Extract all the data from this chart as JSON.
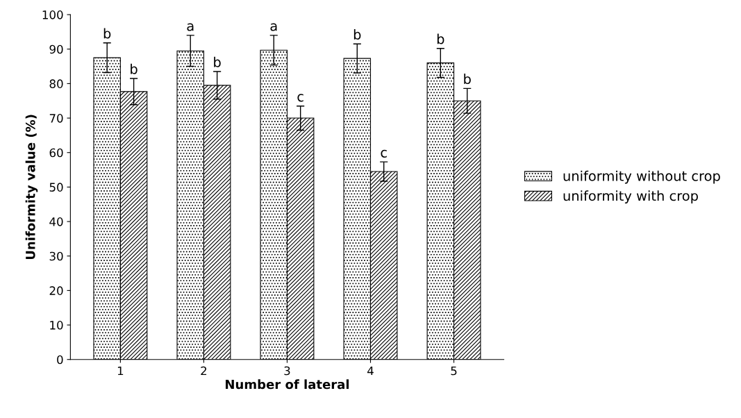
{
  "chart_data": {
    "type": "bar",
    "xlabel": "Number of lateral",
    "ylabel": "Uniformity value (%)",
    "categories": [
      "1",
      "2",
      "3",
      "4",
      "5"
    ],
    "series": [
      {
        "name": "uniformity without crop",
        "color": "#000000",
        "values": [
          87.5,
          89.5,
          89.7,
          87.3,
          86
        ],
        "errors": [
          4.3,
          4.5,
          4.3,
          4.2,
          4.2
        ],
        "value_labels": [
          "b",
          "a",
          "a",
          "b",
          "b"
        ]
      },
      {
        "name": "uniformity with crop",
        "color": "#000000",
        "values": [
          77.7,
          79.5,
          70,
          54.5,
          75
        ],
        "errors": [
          3.8,
          4,
          3.5,
          2.8,
          3.6
        ],
        "value_labels": [
          "b",
          "b",
          "c",
          "c",
          "b"
        ]
      }
    ],
    "ylim": [
      0,
      100
    ],
    "yticks": [
      0,
      10,
      20,
      30,
      40,
      50,
      60,
      70,
      80,
      90,
      100
    ],
    "legend": "right",
    "grid": false
  }
}
